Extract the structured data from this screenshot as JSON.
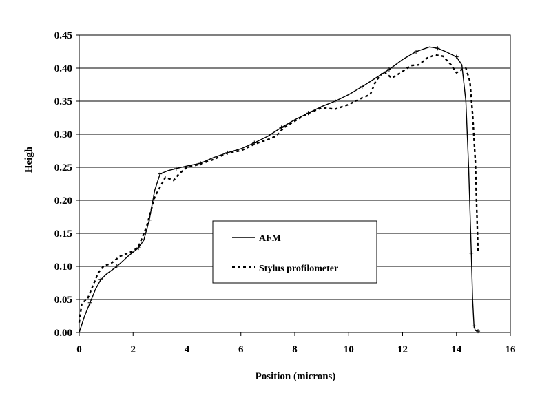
{
  "chart_data": {
    "type": "line",
    "title": "",
    "xlabel": "Position (microns)",
    "ylabel": "Heigh",
    "xlim": [
      0,
      16
    ],
    "ylim": [
      0,
      0.45
    ],
    "xticks": [
      "0",
      "2",
      "4",
      "6",
      "8",
      "10",
      "12",
      "14",
      "16"
    ],
    "yticks": [
      "0.00",
      "0.05",
      "0.10",
      "0.15",
      "0.20",
      "0.25",
      "0.30",
      "0.35",
      "0.40",
      "0.45"
    ],
    "grid": "horizontal",
    "legend_placement": "center",
    "series": [
      {
        "name": "AFM",
        "style": "solid",
        "color": "#000000",
        "x": [
          0,
          0.2,
          0.4,
          0.6,
          0.8,
          1.0,
          1.4,
          1.8,
          2.2,
          2.4,
          2.6,
          2.8,
          3.0,
          3.3,
          3.6,
          4.0,
          4.5,
          5.0,
          5.5,
          6.0,
          6.5,
          7.0,
          7.5,
          8.0,
          8.5,
          9.0,
          9.5,
          10.0,
          10.5,
          11.0,
          11.5,
          12.0,
          12.5,
          13.0,
          13.3,
          13.6,
          14.0,
          14.2,
          14.35,
          14.45,
          14.55,
          14.6,
          14.65,
          14.7,
          14.8
        ],
        "y": [
          0.0,
          0.025,
          0.045,
          0.065,
          0.08,
          0.088,
          0.1,
          0.115,
          0.128,
          0.14,
          0.17,
          0.215,
          0.24,
          0.245,
          0.248,
          0.252,
          0.256,
          0.265,
          0.272,
          0.278,
          0.287,
          0.297,
          0.31,
          0.322,
          0.332,
          0.342,
          0.35,
          0.36,
          0.372,
          0.385,
          0.398,
          0.413,
          0.425,
          0.432,
          0.43,
          0.425,
          0.417,
          0.405,
          0.35,
          0.25,
          0.12,
          0.05,
          0.01,
          0.003,
          0.002
        ]
      },
      {
        "name": "Stylus profilometer",
        "style": "dashed",
        "color": "#000000",
        "x": [
          0.0,
          0.1,
          0.3,
          0.5,
          0.7,
          0.9,
          1.2,
          1.5,
          1.8,
          2.0,
          2.2,
          2.5,
          2.8,
          3.0,
          3.2,
          3.5,
          3.7,
          4.0,
          4.5,
          5.0,
          5.5,
          6.0,
          6.5,
          7.0,
          7.3,
          7.6,
          8.0,
          8.5,
          9.0,
          9.5,
          10.0,
          10.5,
          10.8,
          11.0,
          11.3,
          11.6,
          12.0,
          12.3,
          12.6,
          12.9,
          13.2,
          13.5,
          13.8,
          14.0,
          14.2,
          14.35,
          14.5,
          14.6,
          14.7,
          14.75,
          14.8
        ],
        "y": [
          0.015,
          0.045,
          0.05,
          0.07,
          0.09,
          0.1,
          0.105,
          0.115,
          0.12,
          0.123,
          0.13,
          0.16,
          0.205,
          0.22,
          0.235,
          0.23,
          0.24,
          0.25,
          0.255,
          0.262,
          0.272,
          0.275,
          0.285,
          0.292,
          0.297,
          0.31,
          0.32,
          0.332,
          0.34,
          0.338,
          0.345,
          0.355,
          0.36,
          0.38,
          0.395,
          0.385,
          0.395,
          0.404,
          0.405,
          0.415,
          0.42,
          0.418,
          0.405,
          0.393,
          0.398,
          0.4,
          0.38,
          0.33,
          0.26,
          0.19,
          0.12
        ]
      }
    ]
  }
}
